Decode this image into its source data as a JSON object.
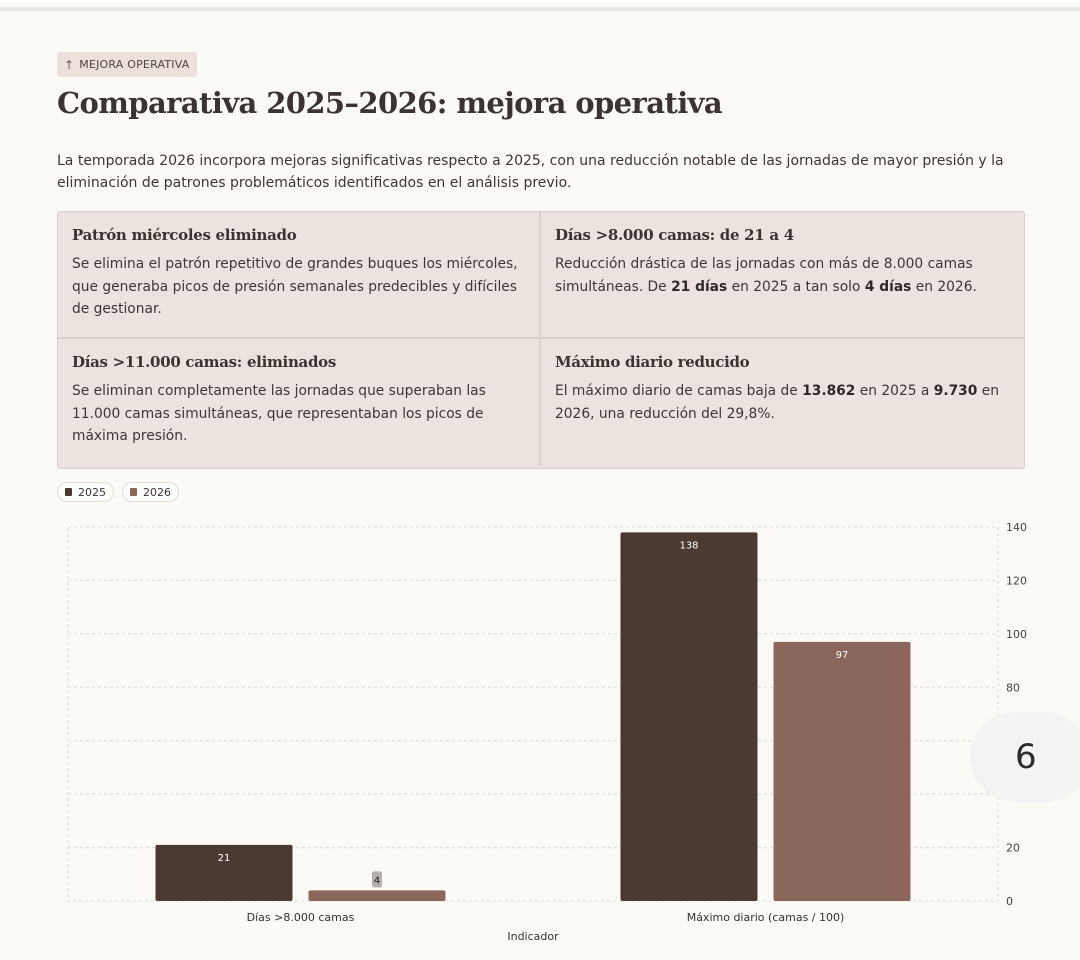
{
  "tag": {
    "icon": "arrow-up-icon",
    "label": "MEJORA OPERATIVA"
  },
  "title": "Comparativa 2025–2026: mejora operativa",
  "intro": "La temporada 2026 incorpora mejoras significativas respecto a 2025, con una reducción notable de las jornadas de mayor presión y la eliminación de patrones problemáticos identificados en el análisis previo.",
  "cards": [
    {
      "title": "Patrón miércoles eliminado",
      "body": [
        {
          "t": "Se elimina el patrón repetitivo de grandes buques los miércoles, que generaba picos de presión semanales predecibles y difíciles de gestionar."
        }
      ]
    },
    {
      "title": "Días >8.000 camas: de 21 a 4",
      "body": [
        {
          "t": "Reducción drástica de las jornadas con más de 8.000 camas simultáneas. De "
        },
        {
          "t": "21 días",
          "b": true
        },
        {
          "t": " en 2025 a tan solo "
        },
        {
          "t": "4 días",
          "b": true
        },
        {
          "t": " en 2026."
        }
      ]
    },
    {
      "title": "Días >11.000 camas: eliminados",
      "body": [
        {
          "t": "Se eliminan completamente las jornadas que superaban las 11.000 camas simultáneas, que representaban los picos de máxima presión."
        }
      ]
    },
    {
      "title": "Máximo diario reducido",
      "body": [
        {
          "t": "El máximo diario de camas baja de "
        },
        {
          "t": "13.862",
          "b": true
        },
        {
          "t": " en 2025 a "
        },
        {
          "t": "9.730",
          "b": true
        },
        {
          "t": " en 2026, una reducción del 29,8%."
        }
      ]
    }
  ],
  "badge": "6",
  "chart_data": {
    "type": "bar",
    "categories": [
      "Días >8.000 camas",
      "Máximo diario (camas / 100)"
    ],
    "series": [
      {
        "name": "2025",
        "values": [
          21,
          138
        ],
        "color": "#4a3a32"
      },
      {
        "name": "2026",
        "values": [
          4,
          97
        ],
        "color": "#8b665a"
      }
    ],
    "xlabel": "Indicador",
    "ylabel": "",
    "ylim": [
      0,
      140
    ],
    "yticks": [
      0,
      20,
      80,
      100,
      120,
      140
    ],
    "grid": true,
    "axis_side": "right",
    "legend_position": "top-left"
  }
}
